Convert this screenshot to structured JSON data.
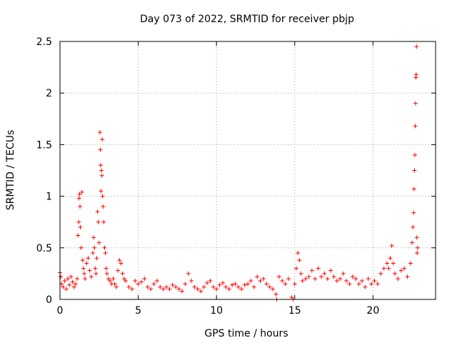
{
  "chart_data": {
    "type": "scatter",
    "title": "Day 073 of 2022, SRMTID for receiver pbjp",
    "xlabel": "GPS time / hours",
    "ylabel": "SRMTID / TECUs",
    "xlim": [
      0,
      24
    ],
    "ylim": [
      0,
      2.5
    ],
    "xticks": [
      0,
      5,
      10,
      15,
      20
    ],
    "yticks": [
      0,
      0.5,
      1,
      1.5,
      2,
      2.5
    ],
    "xtick_labels": [
      "0",
      "5",
      "10",
      "15",
      "20"
    ],
    "ytick_labels": [
      "0",
      "0.5",
      "1",
      "1.5",
      "2",
      "2.5"
    ],
    "grid": true,
    "marker": "+",
    "color": "#ff0000",
    "series": [
      {
        "name": "pbjp",
        "points": [
          [
            0.0,
            0.26
          ],
          [
            0.05,
            0.22
          ],
          [
            0.1,
            0.15
          ],
          [
            0.2,
            0.12
          ],
          [
            0.3,
            0.18
          ],
          [
            0.4,
            0.1
          ],
          [
            0.5,
            0.2
          ],
          [
            0.6,
            0.14
          ],
          [
            0.7,
            0.22
          ],
          [
            0.8,
            0.17
          ],
          [
            0.9,
            0.12
          ],
          [
            1.0,
            0.15
          ],
          [
            1.1,
            0.2
          ],
          [
            1.15,
            0.62
          ],
          [
            1.2,
            0.75
          ],
          [
            1.22,
            0.98
          ],
          [
            1.25,
            1.02
          ],
          [
            1.28,
            0.9
          ],
          [
            1.3,
            0.7
          ],
          [
            1.35,
            0.5
          ],
          [
            1.4,
            1.04
          ],
          [
            1.45,
            0.38
          ],
          [
            1.5,
            0.3
          ],
          [
            1.55,
            0.25
          ],
          [
            1.6,
            0.2
          ],
          [
            1.7,
            0.35
          ],
          [
            1.8,
            0.4
          ],
          [
            1.9,
            0.28
          ],
          [
            2.0,
            0.22
          ],
          [
            2.1,
            0.45
          ],
          [
            2.15,
            0.6
          ],
          [
            2.2,
            0.5
          ],
          [
            2.25,
            0.3
          ],
          [
            2.3,
            0.25
          ],
          [
            2.35,
            0.4
          ],
          [
            2.4,
            0.85
          ],
          [
            2.45,
            0.75
          ],
          [
            2.5,
            0.55
          ],
          [
            2.55,
            1.62
          ],
          [
            2.58,
            1.45
          ],
          [
            2.6,
            1.3
          ],
          [
            2.62,
            1.05
          ],
          [
            2.65,
            1.25
          ],
          [
            2.68,
            1.2
          ],
          [
            2.7,
            1.55
          ],
          [
            2.72,
            1.0
          ],
          [
            2.75,
            0.9
          ],
          [
            2.8,
            0.75
          ],
          [
            2.85,
            0.5
          ],
          [
            2.9,
            0.45
          ],
          [
            2.95,
            0.3
          ],
          [
            3.0,
            0.25
          ],
          [
            3.1,
            0.2
          ],
          [
            3.2,
            0.18
          ],
          [
            3.3,
            0.15
          ],
          [
            3.4,
            0.2
          ],
          [
            3.5,
            0.15
          ],
          [
            3.6,
            0.12
          ],
          [
            3.7,
            0.28
          ],
          [
            3.8,
            0.38
          ],
          [
            3.9,
            0.35
          ],
          [
            4.0,
            0.25
          ],
          [
            4.1,
            0.2
          ],
          [
            4.2,
            0.18
          ],
          [
            4.4,
            0.12
          ],
          [
            4.6,
            0.1
          ],
          [
            4.8,
            0.18
          ],
          [
            5.0,
            0.15
          ],
          [
            5.2,
            0.17
          ],
          [
            5.4,
            0.2
          ],
          [
            5.6,
            0.12
          ],
          [
            5.8,
            0.1
          ],
          [
            6.0,
            0.15
          ],
          [
            6.2,
            0.18
          ],
          [
            6.4,
            0.12
          ],
          [
            6.6,
            0.1
          ],
          [
            6.8,
            0.12
          ],
          [
            7.0,
            0.1
          ],
          [
            7.2,
            0.14
          ],
          [
            7.4,
            0.12
          ],
          [
            7.6,
            0.1
          ],
          [
            7.8,
            0.08
          ],
          [
            8.0,
            0.15
          ],
          [
            8.2,
            0.25
          ],
          [
            8.4,
            0.18
          ],
          [
            8.6,
            0.12
          ],
          [
            8.8,
            0.1
          ],
          [
            9.0,
            0.08
          ],
          [
            9.2,
            0.12
          ],
          [
            9.4,
            0.16
          ],
          [
            9.6,
            0.18
          ],
          [
            9.8,
            0.12
          ],
          [
            10.0,
            0.1
          ],
          [
            10.2,
            0.14
          ],
          [
            10.4,
            0.16
          ],
          [
            10.6,
            0.12
          ],
          [
            10.8,
            0.1
          ],
          [
            11.0,
            0.14
          ],
          [
            11.2,
            0.15
          ],
          [
            11.4,
            0.12
          ],
          [
            11.6,
            0.1
          ],
          [
            11.8,
            0.14
          ],
          [
            12.0,
            0.15
          ],
          [
            12.2,
            0.18
          ],
          [
            12.4,
            0.12
          ],
          [
            12.6,
            0.22
          ],
          [
            12.8,
            0.18
          ],
          [
            13.0,
            0.2
          ],
          [
            13.2,
            0.15
          ],
          [
            13.4,
            0.12
          ],
          [
            13.6,
            0.1
          ],
          [
            13.8,
            0.05
          ],
          [
            13.85,
            0.0
          ],
          [
            14.0,
            0.22
          ],
          [
            14.2,
            0.18
          ],
          [
            14.4,
            0.15
          ],
          [
            14.6,
            0.2
          ],
          [
            14.8,
            0.02
          ],
          [
            14.9,
            0.0
          ],
          [
            15.0,
            0.15
          ],
          [
            15.1,
            0.3
          ],
          [
            15.2,
            0.45
          ],
          [
            15.3,
            0.38
          ],
          [
            15.4,
            0.25
          ],
          [
            15.5,
            0.18
          ],
          [
            15.7,
            0.2
          ],
          [
            15.9,
            0.22
          ],
          [
            16.1,
            0.28
          ],
          [
            16.3,
            0.2
          ],
          [
            16.5,
            0.3
          ],
          [
            16.7,
            0.22
          ],
          [
            16.9,
            0.25
          ],
          [
            17.1,
            0.2
          ],
          [
            17.3,
            0.28
          ],
          [
            17.5,
            0.22
          ],
          [
            17.7,
            0.18
          ],
          [
            17.9,
            0.2
          ],
          [
            18.1,
            0.25
          ],
          [
            18.3,
            0.18
          ],
          [
            18.5,
            0.15
          ],
          [
            18.7,
            0.22
          ],
          [
            18.9,
            0.2
          ],
          [
            19.1,
            0.15
          ],
          [
            19.3,
            0.18
          ],
          [
            19.5,
            0.12
          ],
          [
            19.7,
            0.2
          ],
          [
            19.9,
            0.15
          ],
          [
            20.1,
            0.18
          ],
          [
            20.3,
            0.15
          ],
          [
            20.5,
            0.25
          ],
          [
            20.7,
            0.3
          ],
          [
            20.9,
            0.35
          ],
          [
            21.0,
            0.3
          ],
          [
            21.1,
            0.4
          ],
          [
            21.2,
            0.52
          ],
          [
            21.3,
            0.35
          ],
          [
            21.4,
            0.25
          ],
          [
            21.6,
            0.2
          ],
          [
            21.8,
            0.28
          ],
          [
            22.0,
            0.3
          ],
          [
            22.2,
            0.22
          ],
          [
            22.4,
            0.35
          ],
          [
            22.5,
            0.55
          ],
          [
            22.55,
            0.7
          ],
          [
            22.6,
            0.84
          ],
          [
            22.62,
            1.07
          ],
          [
            22.65,
            1.25
          ],
          [
            22.68,
            1.4
          ],
          [
            22.7,
            1.68
          ],
          [
            22.72,
            1.9
          ],
          [
            22.74,
            2.15
          ],
          [
            22.76,
            2.18
          ],
          [
            22.78,
            2.45
          ],
          [
            22.8,
            0.6
          ],
          [
            22.82,
            0.45
          ],
          [
            22.85,
            0.5
          ]
        ]
      }
    ]
  }
}
